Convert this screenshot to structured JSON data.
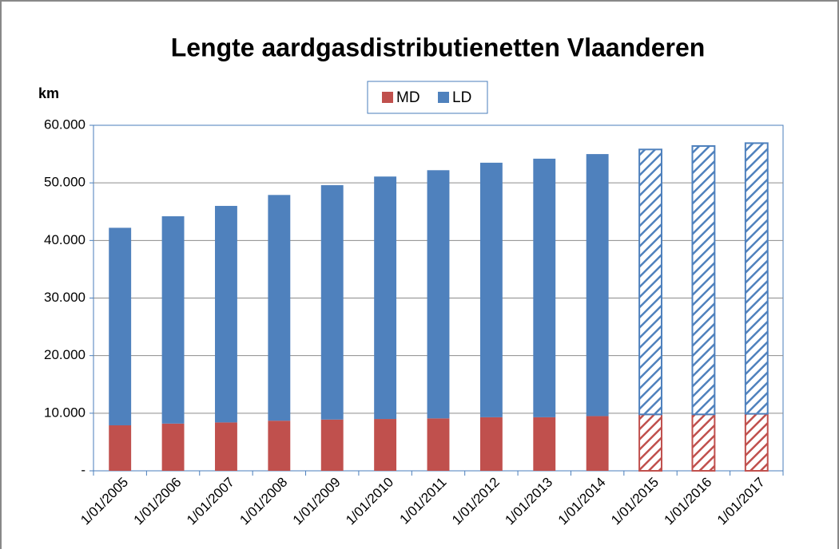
{
  "chart_data": {
    "type": "stacked_bar",
    "title": "Lengte aardgasdistributienetten Vlaanderen",
    "ylabel": "km",
    "categories": [
      "1/01/2005",
      "1/01/2006",
      "1/01/2007",
      "1/01/2008",
      "1/01/2009",
      "1/01/2010",
      "1/01/2011",
      "1/01/2012",
      "1/01/2013",
      "1/01/2014",
      "1/01/2015",
      "1/01/2016",
      "1/01/2017"
    ],
    "series": [
      {
        "name": "MD",
        "color": "#c0504d",
        "values": [
          7900,
          8200,
          8400,
          8700,
          8900,
          9000,
          9100,
          9300,
          9300,
          9500,
          9800,
          9800,
          9900
        ]
      },
      {
        "name": "LD",
        "color": "#4f81bd",
        "values": [
          34300,
          36000,
          37600,
          39200,
          40700,
          42100,
          43100,
          44200,
          44900,
          45500,
          46000,
          46600,
          47000
        ]
      }
    ],
    "hatched": [
      false,
      false,
      false,
      false,
      false,
      false,
      false,
      false,
      false,
      false,
      true,
      true,
      true
    ],
    "ylim": [
      0,
      60000
    ],
    "yticks": [
      {
        "value": 0,
        "label": "-"
      },
      {
        "value": 10000,
        "label": "10.000"
      },
      {
        "value": 20000,
        "label": "20.000"
      },
      {
        "value": 30000,
        "label": "30.000"
      },
      {
        "value": 40000,
        "label": "40.000"
      },
      {
        "value": 50000,
        "label": "50.000"
      },
      {
        "value": 60000,
        "label": "60.000"
      }
    ],
    "grid": true,
    "legend": "top"
  }
}
